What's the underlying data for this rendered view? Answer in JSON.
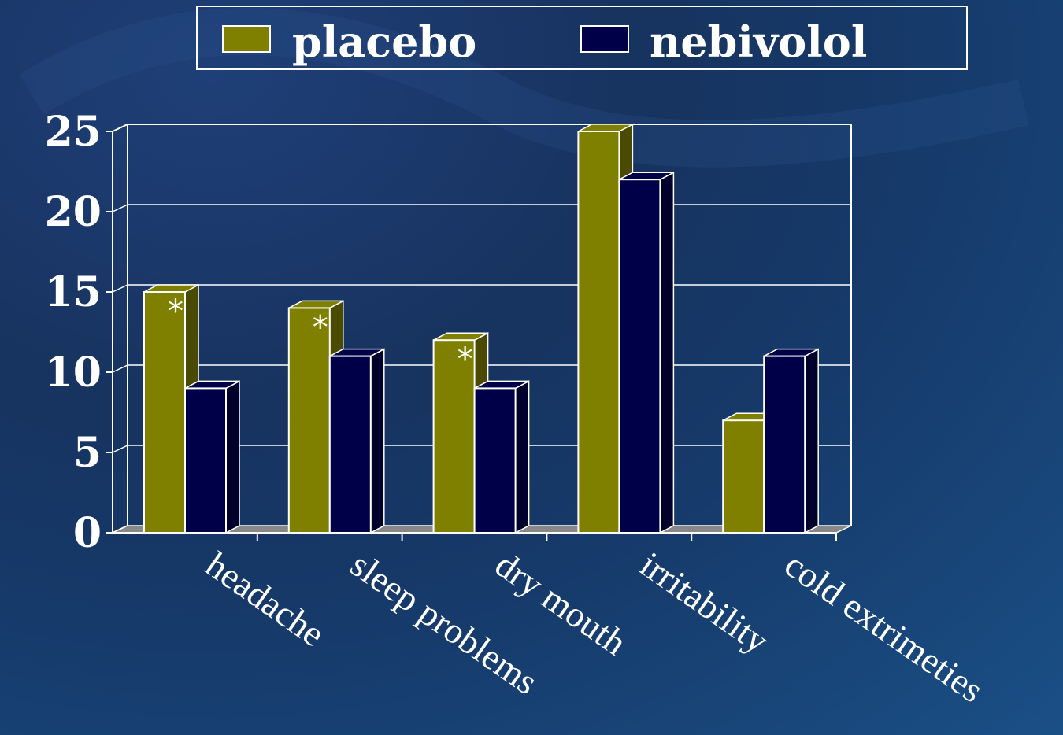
{
  "chart_data": {
    "type": "bar",
    "style": "3d-clustered",
    "categories": [
      "headache",
      "sleep problems",
      "dry mouth",
      "irritability",
      "cold extrimeties"
    ],
    "series": [
      {
        "name": "placebo",
        "values": [
          15,
          14,
          12,
          25,
          7
        ],
        "color": "#7f7f00",
        "side_color": "#4a4a00"
      },
      {
        "name": "nebivolol",
        "values": [
          9,
          11,
          9,
          22,
          11
        ],
        "color": "#000048",
        "side_color": "#00002a"
      }
    ],
    "yticks": [
      0,
      5,
      10,
      15,
      20,
      25
    ],
    "ylim": [
      0,
      25
    ],
    "grid": true,
    "legend_position": "top",
    "annotations": [
      {
        "category": "headache",
        "series": "placebo",
        "text": "*"
      },
      {
        "category": "sleep problems",
        "series": "placebo",
        "text": "*"
      },
      {
        "category": "dry mouth",
        "series": "placebo",
        "text": "*"
      }
    ]
  }
}
